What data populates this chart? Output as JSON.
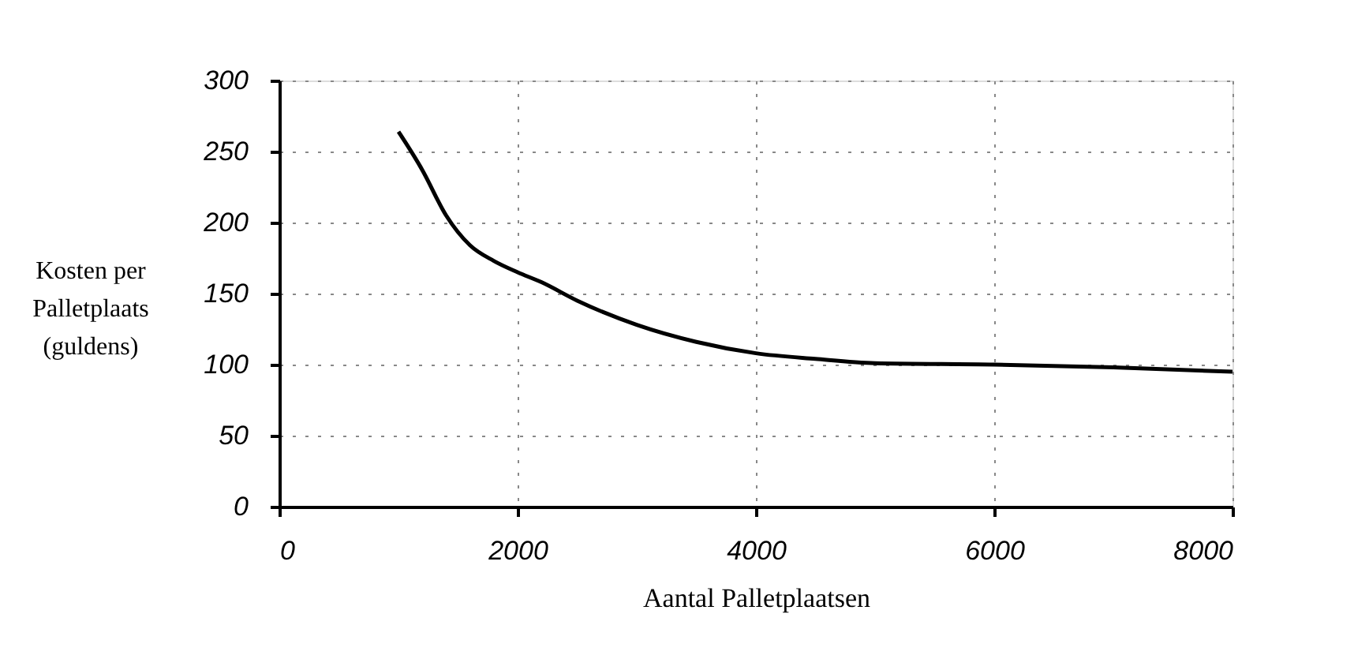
{
  "chart_data": {
    "type": "line",
    "xlabel": "Aantal Palletplaatsen",
    "ylabel": "Kosten per\nPalletplaats\n(guldens)",
    "x": [
      1000,
      1200,
      1400,
      1600,
      1800,
      2000,
      2200,
      2500,
      3000,
      3500,
      4000,
      4500,
      5000,
      6000,
      7000,
      8000
    ],
    "series": [
      {
        "color": "#000000",
        "values": [
          264,
          237,
          205,
          184,
          173,
          165,
          158,
          145,
          128,
          116,
          108,
          104,
          101,
          100,
          98,
          95
        ]
      }
    ],
    "xlim": [
      0,
      8000
    ],
    "xticks": [
      0,
      2000,
      4000,
      6000,
      8000
    ],
    "ylim": [
      0,
      300
    ],
    "yticks": [
      0,
      50,
      100,
      150,
      200,
      250,
      300
    ],
    "grid": true,
    "marker": "none",
    "line_style": "solid"
  }
}
